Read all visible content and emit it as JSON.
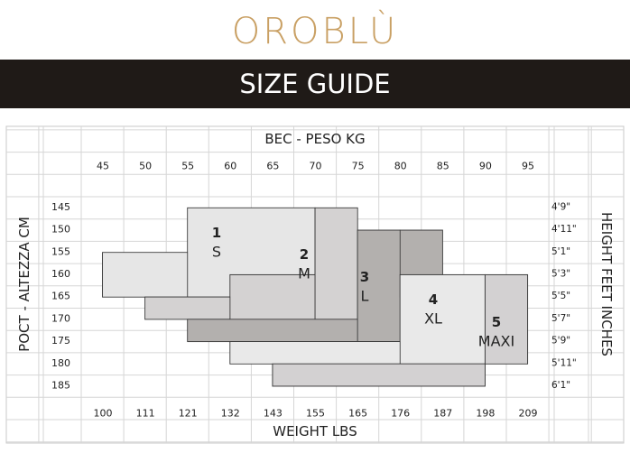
{
  "header": {
    "brand": "OROBLÙ",
    "title": "SIZE GUIDE"
  },
  "chart_data": {
    "type": "table",
    "top_axis_title": "BEC - PESO KG",
    "bottom_axis_title": "WEIGHT LBS",
    "left_axis_title": "POCT - ALTEZZA CM",
    "right_axis_title": "HEIGHT FEET INCHES",
    "weight_kg": [
      "45",
      "50",
      "55",
      "60",
      "65",
      "70",
      "75",
      "80",
      "85",
      "90",
      "95"
    ],
    "weight_lbs": [
      "100",
      "111",
      "121",
      "132",
      "143",
      "155",
      "165",
      "176",
      "187",
      "198",
      "209"
    ],
    "height_cm": [
      "145",
      "150",
      "155",
      "160",
      "165",
      "170",
      "175",
      "180",
      "185"
    ],
    "height_ft": [
      "4'9\"",
      "4'11\"",
      "5'1\"",
      "5'3\"",
      "5'5\"",
      "5'7\"",
      "5'9\"",
      "5'11\"",
      "6'1\""
    ],
    "sizes": [
      {
        "number": "1",
        "label": "S",
        "color": "#e6e6e6",
        "ranges": [
          {
            "kg": [
              45,
              55
            ],
            "cm": [
              155,
              165
            ]
          },
          {
            "kg": [
              55,
              70
            ],
            "cm": [
              145,
              165
            ]
          }
        ]
      },
      {
        "number": "2",
        "label": "M",
        "color": "#d4d2d2",
        "ranges": [
          {
            "kg": [
              60,
              70
            ],
            "cm": [
              160,
              175
            ]
          },
          {
            "kg": [
              70,
              75
            ],
            "cm": [
              145,
              175
            ]
          },
          {
            "kg": [
              50,
              60
            ],
            "cm": [
              165,
              170
            ]
          }
        ]
      },
      {
        "number": "3",
        "label": "L",
        "color": "#b3b0ae",
        "ranges": [
          {
            "kg": [
              55,
              75
            ],
            "cm": [
              170,
              175
            ]
          },
          {
            "kg": [
              75,
              80
            ],
            "cm": [
              150,
              175
            ]
          },
          {
            "kg": [
              80,
              85
            ],
            "cm": [
              150,
              165
            ]
          }
        ]
      },
      {
        "number": "4",
        "label": "XL",
        "color": "#e9e9e9",
        "ranges": [
          {
            "kg": [
              60,
              80
            ],
            "cm": [
              175,
              180
            ]
          },
          {
            "kg": [
              80,
              90
            ],
            "cm": [
              160,
              180
            ]
          }
        ]
      },
      {
        "number": "5",
        "label": "MAXI",
        "color": "#d3d1d2",
        "ranges": [
          {
            "kg": [
              65,
              90
            ],
            "cm": [
              180,
              185
            ]
          },
          {
            "kg": [
              90,
              95
            ],
            "cm": [
              160,
              180
            ]
          }
        ]
      }
    ],
    "grid": true
  }
}
